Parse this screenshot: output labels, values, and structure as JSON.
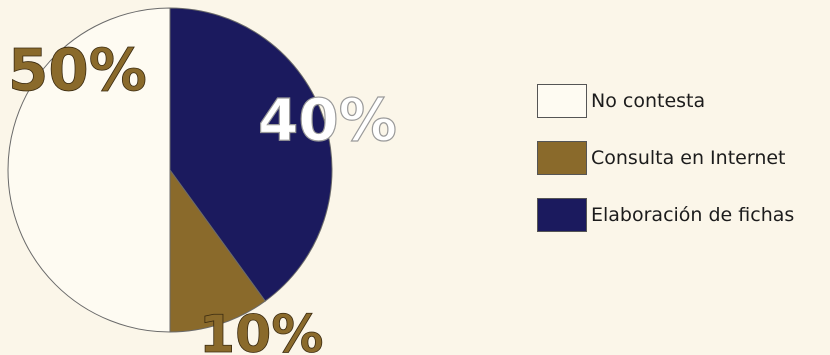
{
  "chart_data": {
    "type": "pie",
    "title": "",
    "slices": [
      {
        "label": "Elaboración de fichas",
        "value": 40,
        "display": "40%",
        "color": "#1b1a5e"
      },
      {
        "label": "Consulta en Internet",
        "value": 10,
        "display": "10%",
        "color": "#8a6a2b"
      },
      {
        "label": "No contesta",
        "value": 50,
        "display": "50%",
        "color": "#fefbf2"
      }
    ],
    "legend": {
      "placement": "right",
      "items": [
        {
          "label": "No contesta",
          "color": "#fefbf2"
        },
        {
          "label": "Consulta en Internet",
          "color": "#8a6a2b"
        },
        {
          "label": "Elaboración de fichas",
          "color": "#1b1a5e"
        }
      ]
    }
  }
}
